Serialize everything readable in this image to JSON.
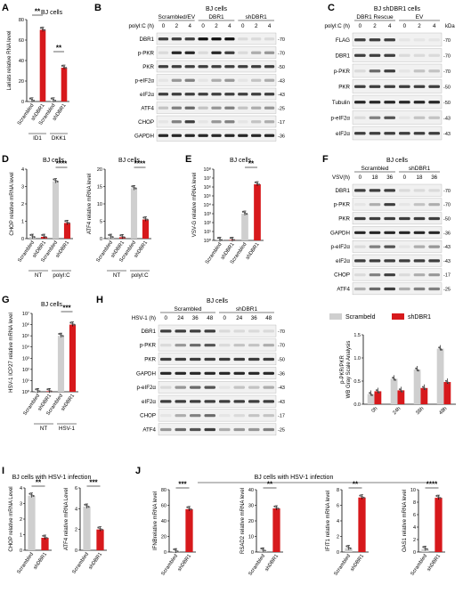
{
  "colors": {
    "red": "#d7191c",
    "gray": "#cfcfcf",
    "band": "#111111",
    "bg": "#f2f2f2"
  },
  "panelA": {
    "label": "A",
    "title": "BJ cells",
    "ylabel": "Lariats relative RNA level",
    "yticks": [
      "0",
      "20",
      "40",
      "60",
      "80"
    ],
    "categories": [
      "Scrambled",
      "shDBR1",
      "Scrambled",
      "shDBR1"
    ],
    "groups": [
      "ID1",
      "DKK1"
    ],
    "stars": [
      "**",
      "**"
    ]
  },
  "panelB": {
    "label": "B",
    "title": "BJ cells",
    "treat": "polyI:C (h)",
    "groups": [
      "Scrambled/EV",
      "DBR1",
      "shDBR1"
    ],
    "times": [
      "0",
      "2",
      "4",
      "0",
      "2",
      "4",
      "0",
      "2",
      "4"
    ],
    "rows": [
      "DBR1",
      "p-PKR",
      "PKR",
      "p-eIF2α",
      "eIF2α",
      "ATF4",
      "CHOP",
      "GAPDH"
    ],
    "kda": [
      "-70",
      "-70",
      "-50",
      "-43",
      "-43",
      "-25",
      "-17",
      "-36"
    ]
  },
  "panelC": {
    "label": "C",
    "title": "BJ shDBR1 cells",
    "treat": "polyI:C (h)",
    "groups": [
      "DBR1 Rescue",
      "EV"
    ],
    "times": [
      "0",
      "2",
      "4",
      "0",
      "2",
      "4"
    ],
    "unit": "kDa",
    "rows": [
      "FLAG",
      "DBR1",
      "p-PKR",
      "PKR",
      "Tubulin",
      "p-eIF2α",
      "eIF2α"
    ],
    "kda": [
      "-70",
      "-70",
      "-70",
      "-50",
      "-50",
      "-43",
      "-43"
    ]
  },
  "panelD": {
    "label": "D",
    "charts": [
      {
        "title": "BJ cells",
        "ylabel": "CHOP relative mRNA level",
        "yticks": [
          "0",
          "1",
          "2",
          "3",
          "4"
        ],
        "stars": "****"
      },
      {
        "title": "BJ cells",
        "ylabel": "ATF4 relative mRNA level",
        "yticks": [
          "0",
          "5",
          "10",
          "15",
          "20"
        ],
        "stars": "****"
      }
    ],
    "categories": [
      "Scrambled",
      "shDBR1",
      "Scrambled",
      "shDBR1"
    ],
    "groups": [
      "NT",
      "polyI:C"
    ]
  },
  "panelE": {
    "label": "E",
    "title": "BJ cells",
    "ylabel": "VSV-G relative mRNA level",
    "yticks": [
      "10⁸",
      "10⁷",
      "10⁶",
      "10⁵",
      "10⁴",
      "10³",
      "10²",
      "10¹",
      "10⁰"
    ],
    "stars": "**",
    "categories": [
      "Scrambled",
      "shDBR1",
      "Scrambled",
      "shDBR1"
    ]
  },
  "panelF": {
    "label": "F",
    "title": "BJ cells",
    "treat": "VSV(h)",
    "groups": [
      "Scrambled",
      "shDBR1"
    ],
    "times": [
      "0",
      "18",
      "36",
      "0",
      "18",
      "36"
    ],
    "rows": [
      "DBR1",
      "p-PKR",
      "PKR",
      "GAPDH",
      "p-eIF2α",
      "eIF2α",
      "CHOP",
      "ATF4"
    ],
    "kda": [
      "-70",
      "-70",
      "-50",
      "-36",
      "-43",
      "-43",
      "-17",
      "-25"
    ]
  },
  "panelG": {
    "label": "G",
    "title": "BJ cells",
    "ylabel": "HSV-1 ICP27 relative mRNA level",
    "yticks": [
      "10⁷",
      "10⁶",
      "10⁵",
      "10⁴",
      "10³",
      "10²",
      "10¹",
      "10⁰"
    ],
    "stars": "***",
    "categories": [
      "Scrambled",
      "shDBR1",
      "Scrambled",
      "shDBR1"
    ],
    "groups": [
      "NT",
      "HSV-1"
    ]
  },
  "panelH": {
    "label": "H",
    "title": "BJ cells",
    "treat": "HSV-1 (h)",
    "groups": [
      "Scrambled",
      "shDBR1"
    ],
    "times": [
      "0",
      "24",
      "36",
      "48",
      "0",
      "24",
      "36",
      "48"
    ],
    "rows": [
      "DBR1",
      "p-PKR",
      "PKR",
      "GAPDH",
      "p-eIF2α",
      "eIF2α",
      "CHOP",
      "ATF4"
    ],
    "kda": [
      "-70",
      "-70",
      "-50",
      "-36",
      "-43",
      "-43",
      "-17",
      "-25"
    ],
    "legend": [
      "Scrambeld",
      "shDBR1"
    ],
    "ylabel1": "p-PKR/PKR",
    "ylabel2": "WB Gray Scale Analysis",
    "yticks": [
      "0.0",
      "0.5",
      "1.0",
      "1.5"
    ],
    "xcats": [
      "0h",
      "24h",
      "36h",
      "48h"
    ]
  },
  "panelI": {
    "label": "I",
    "title": "BJ cells with HSV-1 infection",
    "charts": [
      {
        "ylabel": "CHOP relative mRNA Level",
        "yticks": [
          "0",
          "1",
          "2",
          "3",
          "4"
        ],
        "stars": "**"
      },
      {
        "ylabel": "ATF4 relative mRNA Level",
        "yticks": [
          "0",
          "2",
          "4",
          "6"
        ],
        "stars": "***"
      }
    ],
    "categories": [
      "Scrambled",
      "shDBR1"
    ]
  },
  "panelJ": {
    "label": "J",
    "title": "BJ cells with HSV-1 infection",
    "charts": [
      {
        "ylabel": "IFNBrelative mRNA level",
        "yticks": [
          "0",
          "20",
          "40",
          "60",
          "80"
        ],
        "stars": "***"
      },
      {
        "ylabel": "RSAD2 relative mRNA level",
        "yticks": [
          "0",
          "10",
          "20",
          "30",
          "40"
        ],
        "stars": "**"
      },
      {
        "ylabel": "IFIT1 relative mRNA level",
        "yticks": [
          "0",
          "2",
          "4",
          "6",
          "8"
        ],
        "stars": "**"
      },
      {
        "ylabel": "OAS1 relative mRNA level",
        "yticks": [
          "0",
          "2",
          "4",
          "6",
          "8",
          "10"
        ],
        "stars": "****"
      }
    ],
    "categories": [
      "Scrambled",
      "shDBR1"
    ]
  },
  "chart_data": [
    {
      "type": "bar",
      "panel": "A",
      "categories": [
        "Scrambled (ID1)",
        "shDBR1 (ID1)",
        "Scrambled (DKK1)",
        "shDBR1 (DKK1)"
      ],
      "values": [
        1,
        70,
        1,
        33
      ],
      "ylim": [
        0,
        80
      ],
      "ylabel": "Lariats relative RNA level"
    },
    {
      "type": "bar",
      "panel": "D-CHOP",
      "categories": [
        "Scrambled (NT)",
        "shDBR1 (NT)",
        "Scrambled (polyI:C)",
        "shDBR1 (polyI:C)"
      ],
      "values": [
        0.1,
        0.1,
        3.3,
        0.9
      ],
      "ylim": [
        0,
        4
      ]
    },
    {
      "type": "bar",
      "panel": "D-ATF4",
      "categories": [
        "Scrambled (NT)",
        "shDBR1 (NT)",
        "Scrambled (polyI:C)",
        "shDBR1 (polyI:C)"
      ],
      "values": [
        0.5,
        0.4,
        14.5,
        5.5
      ],
      "ylim": [
        0,
        20
      ]
    },
    {
      "type": "bar",
      "panel": "E",
      "log": true,
      "categories": [
        "Scrambled",
        "shDBR1",
        "Scrambled",
        "shDBR1"
      ],
      "values": [
        1,
        1,
        1000,
        2000000
      ],
      "ylim": [
        1,
        100000000
      ]
    },
    {
      "type": "bar",
      "panel": "G",
      "log": true,
      "categories": [
        "Scrambled (NT)",
        "shDBR1 (NT)",
        "Scrambled (HSV-1)",
        "shDBR1 (HSV-1)"
      ],
      "values": [
        1,
        1,
        100000,
        1000000
      ],
      "ylim": [
        1,
        10000000
      ]
    },
    {
      "type": "bar",
      "panel": "H",
      "categories": [
        "0h",
        "24h",
        "36h",
        "48h"
      ],
      "series": [
        {
          "name": "Scrambeld",
          "values": [
            0.22,
            0.55,
            0.75,
            1.2
          ]
        },
        {
          "name": "shDBR1",
          "values": [
            0.28,
            0.3,
            0.35,
            0.48
          ]
        }
      ],
      "ylim": [
        0,
        1.5
      ]
    },
    {
      "type": "bar",
      "panel": "I-CHOP",
      "categories": [
        "Scrambled",
        "shDBR1"
      ],
      "values": [
        3.5,
        0.8
      ],
      "ylim": [
        0,
        4
      ]
    },
    {
      "type": "bar",
      "panel": "I-ATF4",
      "categories": [
        "Scrambled",
        "shDBR1"
      ],
      "values": [
        4.2,
        2
      ],
      "ylim": [
        0,
        6
      ]
    },
    {
      "type": "bar",
      "panel": "J-IFNB",
      "categories": [
        "Scrambled",
        "shDBR1"
      ],
      "values": [
        1,
        55
      ],
      "ylim": [
        0,
        80
      ]
    },
    {
      "type": "bar",
      "panel": "J-RSAD2",
      "categories": [
        "Scrambled",
        "shDBR1"
      ],
      "values": [
        1,
        28
      ],
      "ylim": [
        0,
        40
      ]
    },
    {
      "type": "bar",
      "panel": "J-IFIT1",
      "categories": [
        "Scrambled",
        "shDBR1"
      ],
      "values": [
        0.5,
        7
      ],
      "ylim": [
        0,
        8
      ]
    },
    {
      "type": "bar",
      "panel": "J-OAS1",
      "categories": [
        "Scrambled",
        "shDBR1"
      ],
      "values": [
        0.5,
        8.7
      ],
      "ylim": [
        0,
        10
      ]
    }
  ]
}
